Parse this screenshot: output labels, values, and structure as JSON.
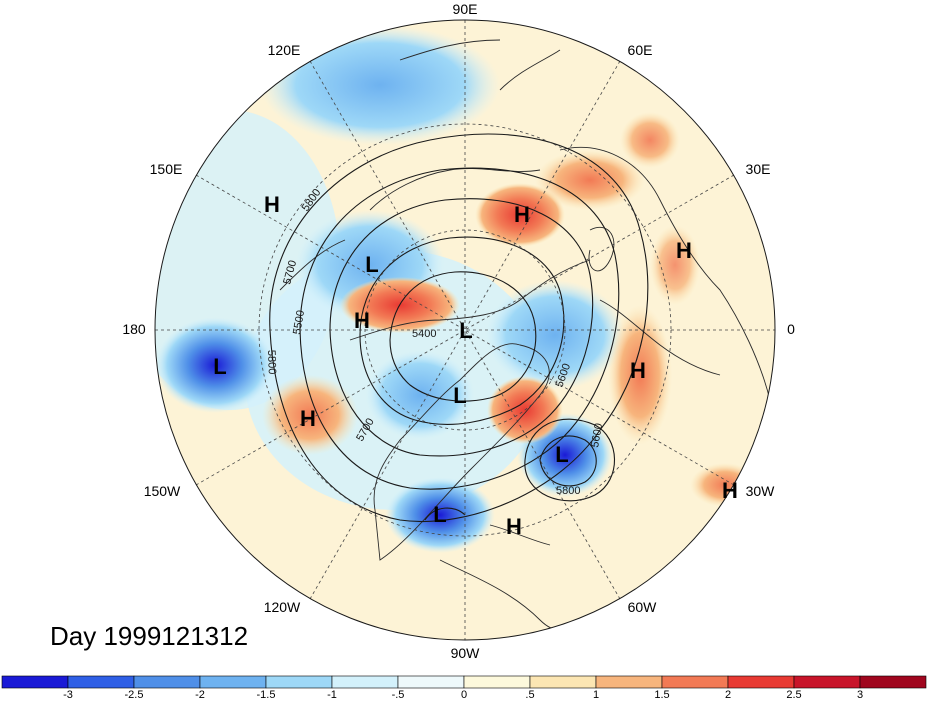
{
  "map": {
    "projection": "north-polar-stereographic",
    "longitude_labels": {
      "top": "90E",
      "upper_left": "120E",
      "upper_right": "60E",
      "left_upper": "150E",
      "right_upper": "30E",
      "left": "180",
      "right": "0",
      "left_lower": "150W",
      "right_lower": "30W",
      "lower_left": "120W",
      "lower_right": "60W",
      "bottom": "90W"
    },
    "pressure_centers": [
      {
        "label": "H",
        "region": "east-siberia"
      },
      {
        "label": "H",
        "region": "west-russia"
      },
      {
        "label": "H",
        "region": "north-africa"
      },
      {
        "label": "H",
        "region": "east-atlantic-azores"
      },
      {
        "label": "H",
        "region": "north-atlantic-far-east"
      },
      {
        "label": "H",
        "region": "bering-strait"
      },
      {
        "label": "H",
        "region": "north-pacific-gulf-of-alaska"
      },
      {
        "label": "H",
        "region": "caribbean"
      },
      {
        "label": "L",
        "region": "north-pacific"
      },
      {
        "label": "L",
        "region": "kamchatka-okhotsk"
      },
      {
        "label": "L",
        "region": "north-pole"
      },
      {
        "label": "L",
        "region": "hudson-bay"
      },
      {
        "label": "L",
        "region": "north-atlantic-newfoundland"
      },
      {
        "label": "L",
        "region": "eastern-united-states"
      }
    ],
    "contour_labels": [
      "5800",
      "5700",
      "5600",
      "5500",
      "5400",
      "5600",
      "5700",
      "5800"
    ]
  },
  "day_label": "Day 1999121312",
  "colorbar": {
    "tick_labels": [
      "-3",
      "-2.5",
      "-2",
      "-1.5",
      "-1",
      "-.5",
      "0",
      ".5",
      "1",
      "1.5",
      "2",
      "2.5",
      "3"
    ],
    "colors": [
      "#1a1ad6",
      "#2f5fe6",
      "#4f8fe8",
      "#6eb2f0",
      "#9ed8f7",
      "#d3f1fb",
      "#eef9fb",
      "#fdf9dc",
      "#fce6b3",
      "#f7b57d",
      "#f27a55",
      "#e83a33",
      "#c8142a",
      "#a0061e"
    ]
  }
}
